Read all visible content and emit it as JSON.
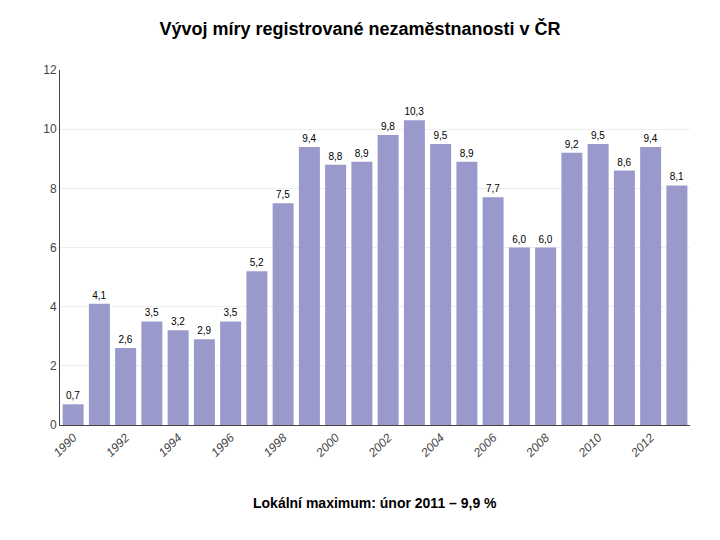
{
  "chart_data": {
    "type": "bar",
    "title": "Vývoj míry registrované nezaměstnanosti v ČR",
    "subtitle": "Lokální maximum: únor 2011 – 9,9 %",
    "categories": [
      "1990",
      null,
      "1992",
      null,
      "1994",
      null,
      "1996",
      null,
      "1998",
      null,
      "2000",
      null,
      "2002",
      null,
      "2004",
      null,
      "2006",
      null,
      "2008",
      null,
      "2010",
      null,
      "2012",
      null
    ],
    "values": [
      0.7,
      4.1,
      2.6,
      3.5,
      3.2,
      2.9,
      3.5,
      5.2,
      7.5,
      9.4,
      8.8,
      8.9,
      9.8,
      10.3,
      9.5,
      8.9,
      7.7,
      6.0,
      6.0,
      9.2,
      9.5,
      8.6,
      9.4,
      8.1
    ],
    "value_labels": [
      "0,7",
      "4,1",
      "2,6",
      "3,5",
      "3,2",
      "2,9",
      "3,5",
      "5,2",
      "7,5",
      "9,4",
      "8,8",
      "8,9",
      "9,8",
      "10,3",
      "9,5",
      "8,9",
      "7,7",
      "6,0",
      "6,0",
      "9,2",
      "9,5",
      "8,6",
      "9,4",
      "8,1"
    ],
    "data_labels": true,
    "color": "#9999CC",
    "ylim": [
      0,
      12
    ],
    "yticks": [
      0,
      2,
      4,
      6,
      8,
      10,
      12
    ],
    "grid": true
  }
}
